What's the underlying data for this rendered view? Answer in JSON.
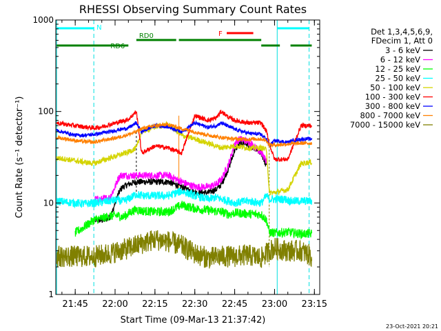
{
  "chart_data": {
    "type": "line",
    "title": "RHESSI Observing Summary Count Rates",
    "xlabel": "Start Time (09-Mar-13 21:37:42)",
    "ylabel": "Count Rate (s⁻¹ detector⁻¹)",
    "y_scale": "log",
    "ylim": [
      1,
      1000
    ],
    "xlim": [
      "21:37:42",
      "23:17:00"
    ],
    "x_ticks": [
      "21:45",
      "22:00",
      "22:15",
      "22:30",
      "22:45",
      "23:00",
      "23:15"
    ],
    "y_ticks": [
      "1",
      "10",
      "100",
      "1000"
    ],
    "legend": {
      "placement": "right",
      "header": [
        "Det 1,3,4,5,6,9,",
        "FDecim 1, Att 0"
      ],
      "entries": [
        "3 - 6 keV",
        "6 - 12 keV",
        "12 - 25 keV",
        "25 - 50 keV",
        "50 - 100 keV",
        "100 - 300 keV",
        "300 - 800 keV",
        "800 - 7000 keV",
        "7000 - 15000 keV"
      ]
    },
    "series": [
      {
        "name": "3 - 6 keV",
        "color": "#000000",
        "x": [
          "21:52",
          "21:56",
          "21:58",
          "21:59",
          "22:00",
          "22:01",
          "22:02",
          "22:03",
          "22:05",
          "22:08",
          "22:10",
          "22:15",
          "22:20",
          "22:25",
          "22:30",
          "22:35",
          "22:38",
          "22:40",
          "22:43",
          "22:45",
          "22:47",
          "22:49",
          "22:51",
          "22:53",
          "22:55",
          "22:57"
        ],
        "y": [
          6.5,
          6.5,
          7,
          8,
          10,
          12,
          14,
          15,
          16,
          17,
          17,
          17,
          17,
          15,
          13,
          13,
          14,
          16,
          25,
          38,
          45,
          45,
          42,
          38,
          35,
          25
        ]
      },
      {
        "name": "6 - 12 keV",
        "color": "#ff00ff",
        "x": [
          "21:52",
          "21:55",
          "21:58",
          "21:59",
          "22:00",
          "22:01",
          "22:02",
          "22:03",
          "22:05",
          "22:08",
          "22:10",
          "22:15",
          "22:20",
          "22:25",
          "22:30",
          "22:35",
          "22:38",
          "22:40",
          "22:43",
          "22:45",
          "22:47",
          "22:49",
          "22:51",
          "22:53",
          "22:55",
          "22:57"
        ],
        "y": [
          11,
          11,
          11.5,
          13,
          15,
          18,
          20,
          20,
          20,
          20,
          20,
          20,
          20,
          17,
          15,
          15,
          16,
          18,
          28,
          45,
          50,
          48,
          45,
          40,
          36,
          28
        ]
      },
      {
        "name": "12 - 25 keV",
        "color": "#00ff00",
        "x": [
          "21:45",
          "21:52",
          "21:55",
          "21:58",
          "22:01",
          "22:03",
          "22:06",
          "22:08",
          "22:10",
          "22:15",
          "22:20",
          "22:25",
          "22:30",
          "22:35",
          "22:40",
          "22:43",
          "22:45",
          "22:50",
          "22:55",
          "22:57",
          "22:58",
          "23:00",
          "23:05",
          "23:10",
          "23:14"
        ],
        "y": [
          4.7,
          6.5,
          6.8,
          7.2,
          7.3,
          7,
          8,
          8.5,
          8.2,
          8,
          8,
          9.5,
          8.7,
          8.3,
          8,
          7.5,
          7.8,
          7.6,
          7.5,
          6.5,
          4.8,
          4.7,
          4.8,
          4.6,
          4.6
        ]
      },
      {
        "name": "25 - 50 keV",
        "color": "#00ffff",
        "x": [
          "21:38",
          "21:42",
          "21:45",
          "21:48",
          "21:52",
          "21:55",
          "21:58",
          "22:01",
          "22:03",
          "22:06",
          "22:08",
          "22:10",
          "22:15",
          "22:20",
          "22:25",
          "22:30",
          "22:35",
          "22:38",
          "22:40",
          "22:43",
          "22:45",
          "22:50",
          "22:55",
          "22:57",
          "22:58",
          "23:00",
          "23:04",
          "23:06",
          "23:10",
          "23:14"
        ],
        "y": [
          10.5,
          10.2,
          10,
          9.8,
          10,
          10.2,
          10.5,
          10.8,
          10.3,
          11.5,
          12.5,
          12,
          12,
          12,
          13.5,
          12,
          11,
          11.5,
          11,
          10.5,
          10,
          10.5,
          10,
          12,
          11,
          11,
          11,
          10.5,
          10.5,
          10.5
        ]
      },
      {
        "name": "50 - 100 keV",
        "color": "#d4d400",
        "x": [
          "21:38",
          "21:42",
          "21:45",
          "21:48",
          "21:52",
          "21:55",
          "21:58",
          "22:01",
          "22:05",
          "22:08",
          "22:10",
          "22:15",
          "22:20",
          "22:25",
          "22:30",
          "22:35",
          "22:40",
          "22:45",
          "22:50",
          "22:55",
          "22:57",
          "22:58",
          "23:00",
          "23:05",
          "23:10",
          "23:14"
        ],
        "y": [
          31,
          30,
          29,
          28,
          27,
          29,
          31,
          33,
          36,
          40,
          60,
          68,
          72,
          55,
          50,
          45,
          40,
          42,
          40,
          40,
          38,
          13,
          13,
          14,
          27,
          28
        ]
      },
      {
        "name": "100 - 300 keV",
        "color": "#ff0000",
        "x": [
          "21:38",
          "21:42",
          "21:45",
          "21:48",
          "21:52",
          "21:55",
          "21:58",
          "22:01",
          "22:05",
          "22:08",
          "22:10",
          "22:15",
          "22:20",
          "22:25",
          "22:30",
          "22:35",
          "22:38",
          "22:40",
          "22:43",
          "22:45",
          "22:50",
          "22:55",
          "22:57",
          "22:58",
          "23:00",
          "23:05",
          "23:10",
          "23:14"
        ],
        "y": [
          75,
          72,
          70,
          68,
          66,
          68,
          72,
          76,
          82,
          100,
          35,
          42,
          40,
          35,
          90,
          80,
          85,
          100,
          85,
          80,
          75,
          75,
          60,
          45,
          30,
          30,
          70,
          70
        ]
      },
      {
        "name": "300 - 800 keV",
        "color": "#0000ff",
        "x": [
          "21:38",
          "21:42",
          "21:45",
          "21:48",
          "21:52",
          "21:55",
          "21:58",
          "22:01",
          "22:05",
          "22:08",
          "22:10",
          "22:15",
          "22:20",
          "22:25",
          "22:30",
          "22:35",
          "22:38",
          "22:40",
          "22:43",
          "22:45",
          "22:50",
          "22:55",
          "22:57",
          "22:58",
          "23:00",
          "23:05",
          "23:10",
          "23:14"
        ],
        "y": [
          62,
          58,
          55,
          55,
          56,
          58,
          60,
          63,
          66,
          75,
          60,
          70,
          68,
          60,
          75,
          67,
          70,
          75,
          68,
          64,
          58,
          56,
          50,
          42,
          48,
          46,
          50,
          50
        ]
      },
      {
        "name": "800 - 7000 keV",
        "color": "#ff8000",
        "x": [
          "21:38",
          "21:42",
          "21:45",
          "21:48",
          "21:52",
          "21:55",
          "21:58",
          "22:01",
          "22:05",
          "22:08",
          "22:10",
          "22:15",
          "22:20",
          "22:25",
          "22:30",
          "22:35",
          "22:40",
          "22:45",
          "22:50",
          "22:55",
          "22:57",
          "22:58",
          "23:00",
          "23:05",
          "23:10",
          "23:14"
        ],
        "y": [
          52,
          50,
          48,
          47,
          46,
          48,
          50,
          52,
          56,
          60,
          65,
          70,
          72,
          65,
          60,
          55,
          52,
          50,
          50,
          50,
          48,
          43,
          43,
          44,
          45,
          45
        ]
      },
      {
        "name": "7000 - 15000 keV",
        "color": "#808000",
        "x": [
          "21:38",
          "21:45",
          "21:52",
          "21:58",
          "22:05",
          "22:10",
          "22:15",
          "22:20",
          "22:25",
          "22:30",
          "22:35",
          "22:40",
          "22:45",
          "22:50",
          "22:55",
          "22:58",
          "23:00",
          "23:05",
          "23:10",
          "23:14"
        ],
        "y": [
          2.6,
          2.6,
          2.6,
          2.8,
          3.2,
          3.6,
          4,
          3.8,
          3.4,
          2.8,
          2.5,
          2.6,
          2.6,
          2.7,
          2.5,
          3,
          3.2,
          3,
          3,
          2.6
        ]
      }
    ],
    "annotations": [
      {
        "label": "N",
        "color": "#00ffff",
        "level": 1,
        "spans": [
          [
            "21:38",
            "21:52"
          ],
          [
            "23:01",
            "23:13"
          ]
        ]
      },
      {
        "label": "F",
        "color": "#ff0000",
        "level": 2,
        "spans": [
          [
            "22:42",
            "22:52"
          ]
        ]
      },
      {
        "label": "RD0",
        "color": "#008000",
        "level": 3,
        "spans": [
          [
            "22:08",
            "22:23"
          ],
          [
            "22:24",
            "22:55"
          ]
        ]
      },
      {
        "label": "RD6",
        "color": "#008000",
        "level": 4,
        "spans": [
          [
            "21:38",
            "22:05"
          ],
          [
            "22:55",
            "23:02"
          ],
          [
            "23:06",
            "23:14"
          ]
        ]
      }
    ],
    "cyan_lines": {
      "solid": [
        "21:38",
        "23:01"
      ],
      "dashed": [
        "21:52",
        "23:13"
      ]
    },
    "other_lines": {
      "dashed_black": [
        "22:08"
      ],
      "dashed_orange": [
        "22:24"
      ],
      "dashed_brown": [
        "22:58"
      ]
    }
  },
  "footer": {
    "timestamp": "23-Oct-2021 20:21"
  }
}
